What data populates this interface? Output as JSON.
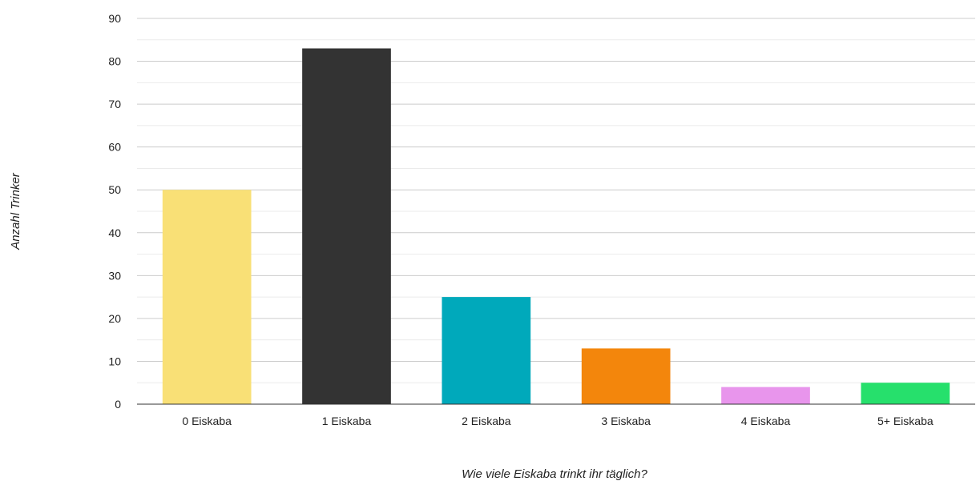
{
  "chart_data": {
    "type": "bar",
    "title": "",
    "xlabel": "Wie viele Eiskaba trinkt ihr täglich?",
    "ylabel": "Anzahl Trinker",
    "categories": [
      "0 Eiskaba",
      "1 Eiskaba",
      "2 Eiskaba",
      "3 Eiskaba",
      "4 Eiskaba",
      "5+ Eiskaba"
    ],
    "values": [
      50,
      83,
      25,
      13,
      4,
      5
    ],
    "colors": [
      "#f9e076",
      "#333333",
      "#00a9bb",
      "#f3860c",
      "#e895ec",
      "#26e06c"
    ],
    "ylim": [
      0,
      90
    ],
    "yticks": [
      0,
      10,
      20,
      30,
      40,
      50,
      60,
      70,
      80,
      90
    ],
    "grid": true,
    "minor_grid": true,
    "legend": "none"
  }
}
